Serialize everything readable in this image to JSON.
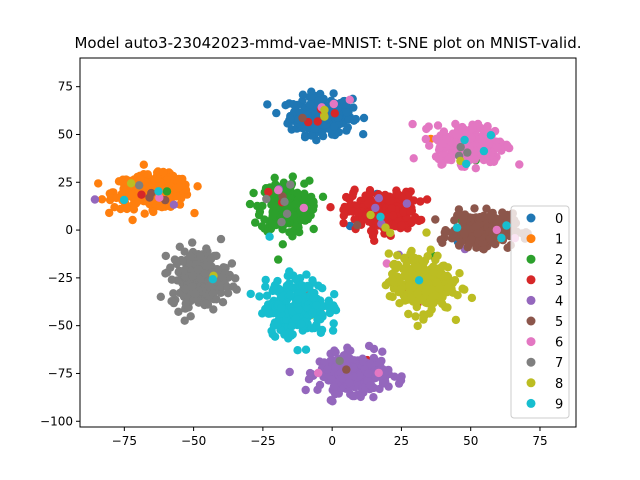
{
  "chart_data": {
    "type": "scatter",
    "title": "Model auto3-23042023-mmd-vae-MNIST: t-SNE plot on MNIST-valid.",
    "xlabel": "",
    "ylabel": "",
    "xlim": [
      -91,
      88
    ],
    "ylim": [
      -103,
      90
    ],
    "xticks": [
      -75,
      -50,
      -25,
      0,
      25,
      50,
      75
    ],
    "yticks": [
      -100,
      -75,
      -50,
      -25,
      0,
      25,
      50,
      75
    ],
    "grid": false,
    "legend_position": "right",
    "clusters": [
      {
        "name": "0",
        "color": "#1f77b4",
        "center": [
          -4,
          60
        ],
        "spread": [
          9,
          8
        ]
      },
      {
        "name": "1",
        "color": "#ff7f0e",
        "center": [
          -65,
          20
        ],
        "spread": [
          11,
          7
        ]
      },
      {
        "name": "2",
        "color": "#2ca02c",
        "center": [
          -17,
          12
        ],
        "spread": [
          7,
          11
        ]
      },
      {
        "name": "3",
        "color": "#d62728",
        "center": [
          18,
          10
        ],
        "spread": [
          10,
          8
        ]
      },
      {
        "name": "4",
        "color": "#9467bd",
        "center": [
          8,
          -75
        ],
        "spread": [
          10,
          8
        ]
      },
      {
        "name": "5",
        "color": "#8c564b",
        "center": [
          54,
          0
        ],
        "spread": [
          9,
          7
        ]
      },
      {
        "name": "6",
        "color": "#e377c2",
        "center": [
          50,
          45
        ],
        "spread": [
          10,
          8
        ]
      },
      {
        "name": "7",
        "color": "#7f7f7f",
        "center": [
          -48,
          -25
        ],
        "spread": [
          8,
          12
        ]
      },
      {
        "name": "8",
        "color": "#bcbd22",
        "center": [
          32,
          -28
        ],
        "spread": [
          9,
          12
        ]
      },
      {
        "name": "9",
        "color": "#17becf",
        "center": [
          -13,
          -40
        ],
        "spread": [
          9,
          12
        ]
      }
    ]
  }
}
